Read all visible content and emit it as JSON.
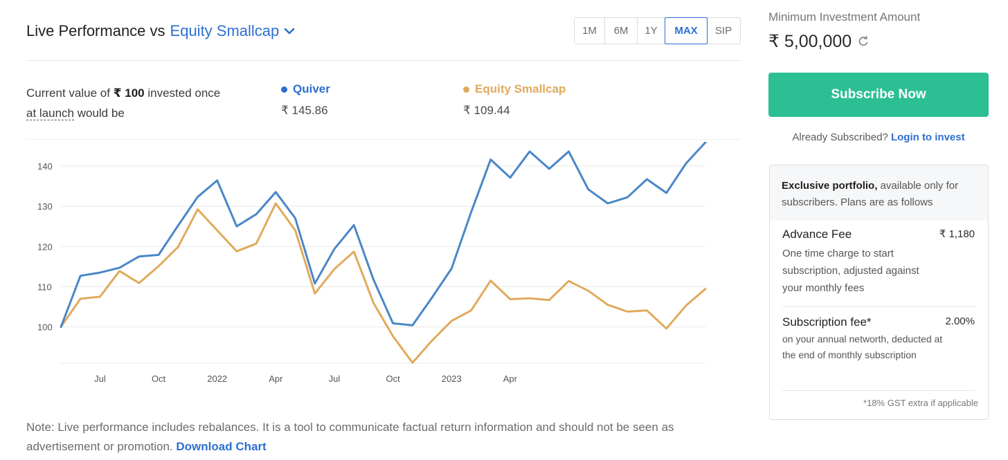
{
  "header": {
    "title_prefix": "Live Performance vs",
    "benchmark": "Equity Smallcap",
    "ranges": [
      {
        "label": "1M",
        "active": false
      },
      {
        "label": "6M",
        "active": false
      },
      {
        "label": "1Y",
        "active": false
      },
      {
        "label": "MAX",
        "active": true
      },
      {
        "label": "SIP",
        "active": false
      }
    ]
  },
  "summary": {
    "line1_a": "Current value of ",
    "line1_b": "₹ 100",
    "line1_c": " invested once",
    "line2_a": "at launch",
    "line2_b": " would be",
    "series": [
      {
        "name": "Quiver",
        "value": "₹ 145.86",
        "color": "#3a7fc8"
      },
      {
        "name": "Equity Smallcap",
        "value": "₹ 109.44",
        "color": "#e0aa5c"
      }
    ]
  },
  "chart_data": {
    "type": "line",
    "ylim": [
      91,
      146
    ],
    "y_ticks": [
      100,
      110,
      120,
      130,
      140
    ],
    "x_tick_labels": [
      "Jul",
      "Oct",
      "2022",
      "Apr",
      "Jul",
      "Oct",
      "2023",
      "Apr"
    ],
    "x_label_start": "2021-05",
    "grid": true,
    "series": [
      {
        "name": "Quiver",
        "color": "#4a86c8",
        "values": [
          100,
          112.7,
          113.5,
          114.7,
          117.5,
          117.9,
          125.2,
          132.3,
          136.4,
          125,
          128,
          133.5,
          127,
          110.8,
          119.4,
          125.3,
          111.8,
          100.9,
          100.4,
          107.3,
          114.5,
          128.5,
          141.6,
          137.1,
          143.6,
          139.3,
          143.6,
          134.2,
          130.7,
          132.2,
          136.7,
          133.3,
          140.6,
          145.86
        ]
      },
      {
        "name": "Equity Smallcap",
        "color": "#e0aa5c",
        "values": [
          100,
          107,
          107.5,
          113.9,
          110.9,
          115.1,
          119.9,
          129.2,
          124,
          118.8,
          120.7,
          130.7,
          124,
          108.3,
          114.4,
          118.7,
          106,
          97.7,
          91.1,
          96.6,
          101.5,
          104.1,
          111.5,
          106.9,
          107.1,
          106.7,
          111.4,
          109,
          105.5,
          103.8,
          104.1,
          99.6,
          105.3,
          109.44
        ]
      }
    ]
  },
  "note": {
    "text": "Note: Live performance includes rebalances. It is a tool to communicate factual return information and should not be seen as advertisement or promotion.",
    "download": "Download Chart"
  },
  "sidebar": {
    "min_investment_label": "Minimum Investment Amount",
    "min_investment_value": "₹ 5,00,000",
    "subscribe_label": "Subscribe Now",
    "already_text": "Already Subscribed?",
    "login_label": "Login to invest",
    "plans_head_bold": "Exclusive portfolio,",
    "plans_head_rest": " available only for subscribers. Plans are as follows",
    "plans": [
      {
        "title": "Advance Fee",
        "price": "₹ 1,180",
        "desc": "One time charge to start subscription, adjusted against your monthly fees"
      },
      {
        "title": "Subscription fee*",
        "price": "2.00%",
        "desc": "on your annual networth, deducted at the end of monthly subscription"
      }
    ],
    "gst_note": "*18% GST extra if applicable"
  }
}
